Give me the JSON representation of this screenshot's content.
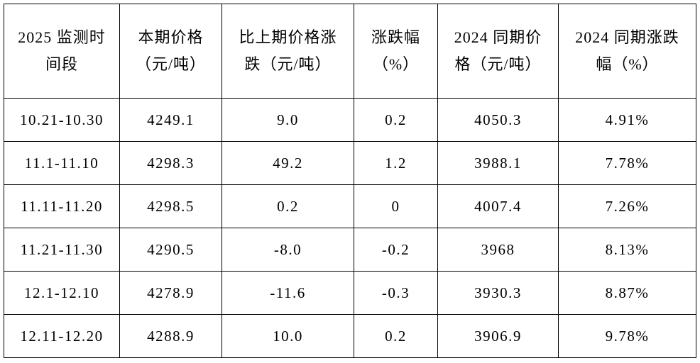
{
  "table": {
    "header": [
      "2025 监测时间段",
      "本期价格（元/吨）",
      "比上期价格涨跌（元/吨）",
      "涨跌幅（%）",
      "2024 同期价格（元/吨）",
      "2024 同期涨跌幅（%）"
    ],
    "rows": [
      [
        "10.21-10.30",
        "4249.1",
        "9.0",
        "0.2",
        "4050.3",
        "4.91%"
      ],
      [
        "11.1-11.10",
        "4298.3",
        "49.2",
        "1.2",
        "3988.1",
        "7.78%"
      ],
      [
        "11.11-11.20",
        "4298.5",
        "0.2",
        "0",
        "4007.4",
        "7.26%"
      ],
      [
        "11.21-11.30",
        "4290.5",
        "-8.0",
        "-0.2",
        "3968",
        "8.13%"
      ],
      [
        "12.1-12.10",
        "4278.9",
        "-11.6",
        "-0.3",
        "3930.3",
        "8.87%"
      ],
      [
        "12.11-12.20",
        "4288.9",
        "10.0",
        "0.2",
        "3906.9",
        "9.78%"
      ]
    ]
  }
}
